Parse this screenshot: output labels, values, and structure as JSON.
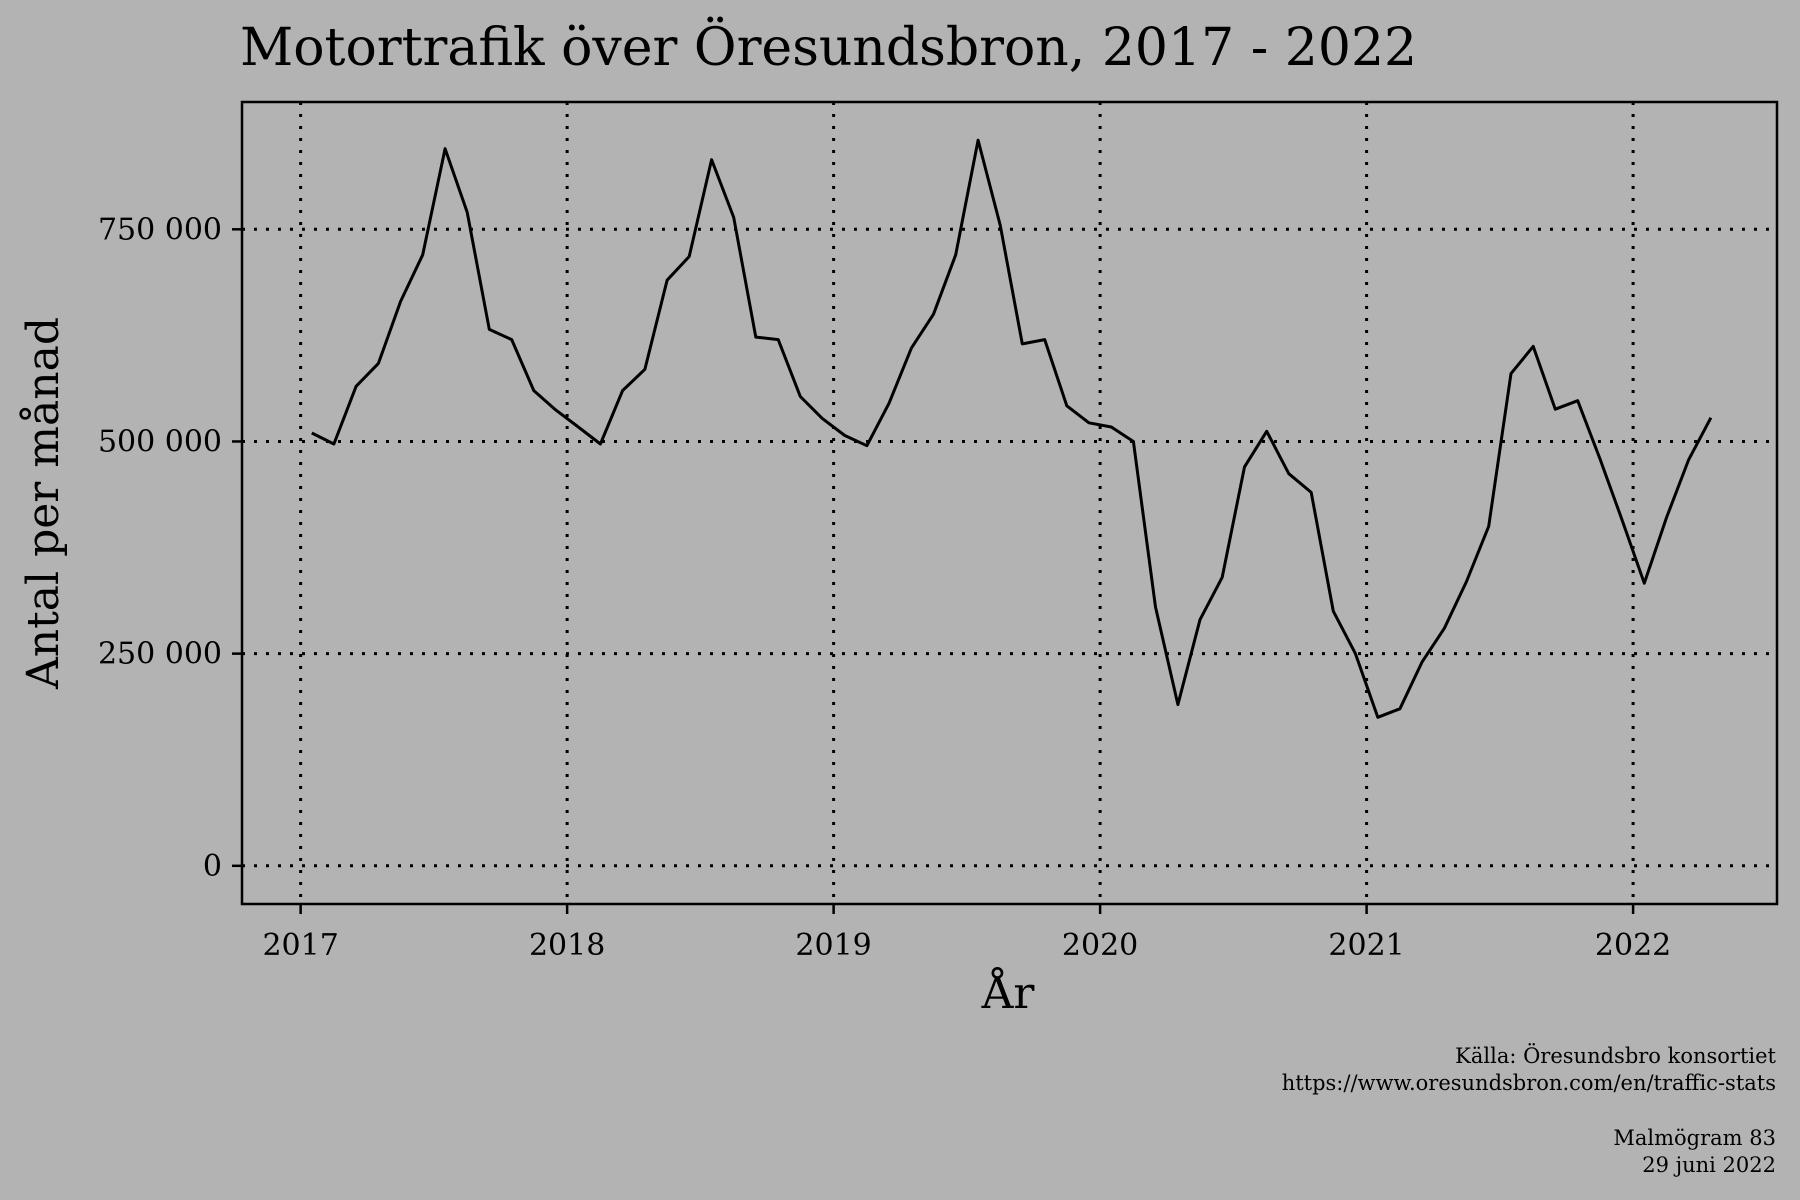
{
  "chart_data": {
    "type": "line",
    "title": "Motortrafik över Öresundsbron, 2017 - 2022",
    "xlabel": "År",
    "ylabel": "Antal per månad",
    "x_ticks": [
      "2017",
      "2018",
      "2019",
      "2020",
      "2021",
      "2022"
    ],
    "y_ticks": [
      {
        "value": 0,
        "label": "0"
      },
      {
        "value": 250000,
        "label": "250 000"
      },
      {
        "value": 500000,
        "label": "500 000"
      },
      {
        "value": 750000,
        "label": "750 000"
      }
    ],
    "xlim": [
      2016.78,
      2022.54
    ],
    "ylim": [
      -45000,
      900000
    ],
    "grid": true,
    "series": [
      {
        "x": [
          2017.042,
          2017.125,
          2017.208,
          2017.292,
          2017.375,
          2017.458,
          2017.542,
          2017.625,
          2017.708,
          2017.792,
          2017.875,
          2017.958,
          2018.042,
          2018.125,
          2018.208,
          2018.292,
          2018.375,
          2018.458,
          2018.542,
          2018.625,
          2018.708,
          2018.792,
          2018.875,
          2018.958,
          2019.042,
          2019.125,
          2019.208,
          2019.292,
          2019.375,
          2019.458,
          2019.542,
          2019.625,
          2019.708,
          2019.792,
          2019.875,
          2019.958,
          2020.042,
          2020.125,
          2020.208,
          2020.292,
          2020.375,
          2020.458,
          2020.542,
          2020.625,
          2020.708,
          2020.792,
          2020.875,
          2020.958,
          2021.042,
          2021.125,
          2021.208,
          2021.292,
          2021.375,
          2021.458,
          2021.542,
          2021.625,
          2021.708,
          2021.792,
          2021.875,
          2021.958,
          2022.042,
          2022.125,
          2022.208,
          2022.292
        ],
        "values": [
          510000,
          497000,
          565000,
          592000,
          665000,
          720000,
          845000,
          770000,
          632000,
          620000,
          560000,
          537000,
          517000,
          497000,
          560000,
          585000,
          690000,
          718000,
          832000,
          764000,
          623000,
          620000,
          553000,
          527000,
          507000,
          495000,
          545000,
          610000,
          650000,
          720000,
          855000,
          755000,
          615000,
          620000,
          542000,
          522000,
          517000,
          500000,
          305000,
          190000,
          290000,
          340000,
          470000,
          512000,
          462000,
          440000,
          300000,
          250000,
          175000,
          185000,
          240000,
          280000,
          335000,
          400000,
          580000,
          612000,
          538000,
          548000,
          480000,
          408000,
          333000,
          410000,
          478000,
          528000
        ]
      }
    ]
  },
  "caption": {
    "source_line1": "Källa: Öresundsbro konsortiet",
    "source_line2": "https://www.oresundsbron.com/en/traffic-stats",
    "credit": "Malmögram 83",
    "date": "29 juni 2022"
  }
}
